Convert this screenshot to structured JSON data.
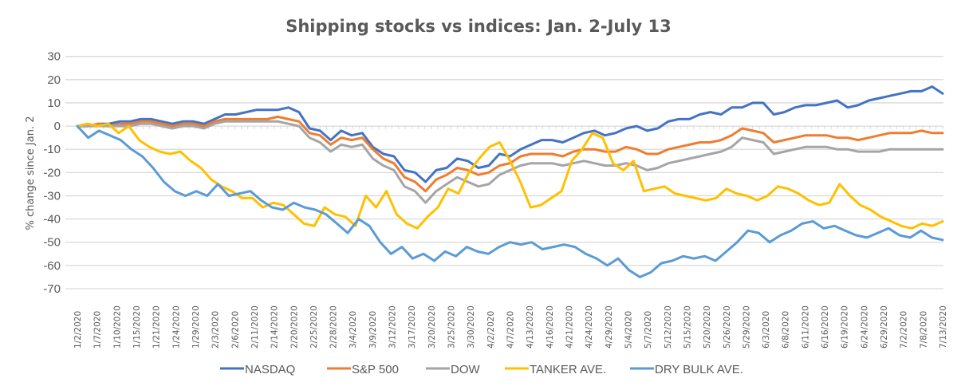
{
  "chart_data": {
    "type": "line",
    "title": "Shipping stocks vs indices: Jan. 2-July 13",
    "xlabel": "",
    "ylabel": "% change since Jan. 2",
    "ylim": [
      -70,
      30
    ],
    "yticks": [
      30,
      20,
      10,
      0,
      -10,
      -20,
      -30,
      -40,
      -50,
      -60,
      -70
    ],
    "grid": true,
    "legend_position": "bottom",
    "xtick_labels": [
      "1/2/2020",
      "1/7/2020",
      "1/10/2020",
      "1/15/2020",
      "1/21/2020",
      "1/24/2020",
      "1/29/2020",
      "2/3/2020",
      "2/6/2020",
      "2/11/2020",
      "2/14/2020",
      "2/20/2020",
      "2/25/2020",
      "2/28/2020",
      "3/4/2020",
      "3/9/2020",
      "3/12/2020",
      "3/17/2020",
      "3/20/2020",
      "3/25/2020",
      "3/30/2020",
      "4/2/2020",
      "4/7/2020",
      "4/13/2020",
      "4/16/2020",
      "4/21/2020",
      "4/24/2020",
      "4/29/2020",
      "5/4/2020",
      "5/7/2020",
      "5/12/2020",
      "5/15/2020",
      "5/20/2020",
      "5/26/2020",
      "5/29/2020",
      "6/3/2020",
      "6/8/2020",
      "6/11/2020",
      "6/16/2020",
      "6/19/2020",
      "6/24/2020",
      "6/29/2020",
      "7/2/2020",
      "7/8/2020",
      "7/13/2020"
    ],
    "series": [
      {
        "name": "NASDAQ",
        "color": "#4472c4",
        "values": [
          0,
          0,
          1,
          1,
          2,
          2,
          3,
          3,
          2,
          1,
          2,
          2,
          1,
          3,
          5,
          5,
          6,
          7,
          7,
          7,
          8,
          6,
          -1,
          -2,
          -6,
          -2,
          -4,
          -3,
          -9,
          -12,
          -13,
          -19,
          -20,
          -24,
          -19,
          -18,
          -14,
          -15,
          -18,
          -17,
          -12,
          -13,
          -10,
          -8,
          -6,
          -6,
          -7,
          -5,
          -3,
          -2,
          -4,
          -3,
          -1,
          0,
          -2,
          -1,
          2,
          3,
          3,
          5,
          6,
          5,
          8,
          8,
          10,
          10,
          5,
          6,
          8,
          9,
          9,
          10,
          11,
          8,
          9,
          11,
          12,
          13,
          14,
          15,
          15,
          17,
          14
        ]
      },
      {
        "name": "S&P 500",
        "color": "#ed7d31",
        "values": [
          0,
          0,
          1,
          0,
          1,
          1,
          2,
          2,
          1,
          0,
          1,
          1,
          0,
          2,
          3,
          3,
          3,
          3,
          3,
          4,
          3,
          2,
          -3,
          -4,
          -8,
          -5,
          -6,
          -5,
          -10,
          -14,
          -16,
          -22,
          -24,
          -28,
          -23,
          -21,
          -18,
          -19,
          -21,
          -20,
          -17,
          -16,
          -13,
          -12,
          -12,
          -12,
          -13,
          -11,
          -10,
          -10,
          -11,
          -11,
          -9,
          -10,
          -12,
          -12,
          -10,
          -9,
          -8,
          -7,
          -7,
          -6,
          -4,
          -1,
          -2,
          -3,
          -7,
          -6,
          -5,
          -4,
          -4,
          -4,
          -5,
          -5,
          -6,
          -5,
          -4,
          -3,
          -3,
          -3,
          -2,
          -3,
          -3
        ]
      },
      {
        "name": "DOW",
        "color": "#a5a5a5",
        "values": [
          0,
          0,
          0,
          0,
          0,
          0,
          1,
          1,
          0,
          -1,
          0,
          0,
          -1,
          1,
          2,
          2,
          2,
          2,
          2,
          2,
          1,
          0,
          -5,
          -7,
          -11,
          -8,
          -9,
          -8,
          -14,
          -17,
          -19,
          -26,
          -28,
          -33,
          -28,
          -25,
          -22,
          -24,
          -26,
          -25,
          -21,
          -19,
          -17,
          -16,
          -16,
          -16,
          -17,
          -16,
          -15,
          -16,
          -17,
          -17,
          -16,
          -17,
          -19,
          -18,
          -16,
          -15,
          -14,
          -13,
          -12,
          -11,
          -9,
          -5,
          -6,
          -7,
          -12,
          -11,
          -10,
          -9,
          -9,
          -9,
          -10,
          -10,
          -11,
          -11,
          -11,
          -10,
          -10,
          -10,
          -10,
          -10,
          -10
        ]
      },
      {
        "name": "TANKER AVE.",
        "color": "#ffc000",
        "values": [
          0,
          1,
          0,
          1,
          -3,
          0,
          -6,
          -9,
          -11,
          -12,
          -11,
          -15,
          -18,
          -23,
          -26,
          -28,
          -31,
          -31,
          -35,
          -33,
          -34,
          -38,
          -42,
          -43,
          -35,
          -38,
          -39,
          -43,
          -30,
          -35,
          -28,
          -38,
          -42,
          -44,
          -39,
          -35,
          -27,
          -29,
          -20,
          -14,
          -9,
          -7,
          -15,
          -24,
          -35,
          -34,
          -31,
          -28,
          -15,
          -10,
          -3,
          -5,
          -16,
          -19,
          -15,
          -28,
          -27,
          -26,
          -29,
          -30,
          -31,
          -32,
          -31,
          -27,
          -29,
          -30,
          -32,
          -30,
          -26,
          -27,
          -29,
          -32,
          -34,
          -33,
          -25,
          -30,
          -34,
          -36,
          -39,
          -41,
          -43,
          -44,
          -42,
          -43,
          -41
        ]
      },
      {
        "name": "DRY BULK AVE.",
        "color": "#5b9bd5",
        "values": [
          0,
          -5,
          -2,
          -4,
          -6,
          -10,
          -13,
          -18,
          -24,
          -28,
          -30,
          -28,
          -30,
          -25,
          -30,
          -29,
          -28,
          -32,
          -35,
          -36,
          -33,
          -35,
          -36,
          -38,
          -42,
          -46,
          -40,
          -43,
          -50,
          -55,
          -52,
          -57,
          -55,
          -58,
          -54,
          -56,
          -52,
          -54,
          -55,
          -52,
          -50,
          -51,
          -50,
          -53,
          -52,
          -51,
          -52,
          -55,
          -57,
          -60,
          -57,
          -62,
          -65,
          -63,
          -59,
          -58,
          -56,
          -57,
          -56,
          -58,
          -54,
          -50,
          -45,
          -46,
          -50,
          -47,
          -45,
          -42,
          -41,
          -44,
          -43,
          -45,
          -47,
          -48,
          -46,
          -44,
          -47,
          -48,
          -45,
          -48,
          -49
        ]
      }
    ]
  }
}
